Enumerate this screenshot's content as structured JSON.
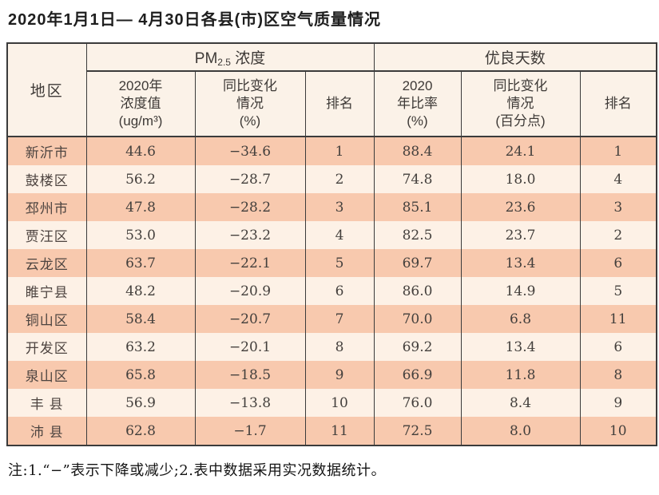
{
  "title": "2020年1月1日— 4月30日各县(市)区空气质量情况",
  "table": {
    "columns": {
      "region": "地区",
      "pm_group": {
        "prefix": "PM",
        "sub": "2.5",
        "suffix": " 浓度"
      },
      "good_group": "优良天数",
      "pm_value": "2020年\n浓度值\n(ug/m³)",
      "pm_change": "同比变化\n情况\n(%)",
      "pm_rank": "排名",
      "good_ratio": "2020\n年比率\n(%)",
      "good_change": "同比变化\n情况\n(百分点)",
      "good_rank": "排名"
    },
    "rows": [
      {
        "region": "新沂市",
        "pm_value": "44.6",
        "pm_change": "−34.6",
        "pm_rank": "1",
        "good_ratio": "88.4",
        "good_change": "24.1",
        "good_rank": "1"
      },
      {
        "region": "鼓楼区",
        "pm_value": "56.2",
        "pm_change": "−28.7",
        "pm_rank": "2",
        "good_ratio": "74.8",
        "good_change": "18.0",
        "good_rank": "4"
      },
      {
        "region": "邳州市",
        "pm_value": "47.8",
        "pm_change": "−28.2",
        "pm_rank": "3",
        "good_ratio": "85.1",
        "good_change": "23.6",
        "good_rank": "3"
      },
      {
        "region": "贾汪区",
        "pm_value": "53.0",
        "pm_change": "−23.2",
        "pm_rank": "4",
        "good_ratio": "82.5",
        "good_change": "23.7",
        "good_rank": "2"
      },
      {
        "region": "云龙区",
        "pm_value": "63.7",
        "pm_change": "−22.1",
        "pm_rank": "5",
        "good_ratio": "69.7",
        "good_change": "13.4",
        "good_rank": "6"
      },
      {
        "region": "睢宁县",
        "pm_value": "48.2",
        "pm_change": "−20.9",
        "pm_rank": "6",
        "good_ratio": "86.0",
        "good_change": "14.9",
        "good_rank": "5"
      },
      {
        "region": "铜山区",
        "pm_value": "58.4",
        "pm_change": "−20.7",
        "pm_rank": "7",
        "good_ratio": "70.0",
        "good_change": "6.8",
        "good_rank": "11"
      },
      {
        "region": "开发区",
        "pm_value": "63.2",
        "pm_change": "−20.1",
        "pm_rank": "8",
        "good_ratio": "69.2",
        "good_change": "13.4",
        "good_rank": "6"
      },
      {
        "region": "泉山区",
        "pm_value": "65.8",
        "pm_change": "−18.5",
        "pm_rank": "9",
        "good_ratio": "66.9",
        "good_change": "11.8",
        "good_rank": "8"
      },
      {
        "region": "丰 县",
        "pm_value": "56.9",
        "pm_change": "−13.8",
        "pm_rank": "10",
        "good_ratio": "76.0",
        "good_change": "8.4",
        "good_rank": "9"
      },
      {
        "region": "沛 县",
        "pm_value": "62.8",
        "pm_change": "−1.7",
        "pm_rank": "11",
        "good_ratio": "72.5",
        "good_change": "8.0",
        "good_rank": "10"
      }
    ]
  },
  "footnote": "注:1.“−”表示下降或减少;2.表中数据采用实况数据统计。",
  "colors": {
    "row_odd": "#f8c9ae",
    "row_even": "#fdf1e6",
    "header_bg": "#fbf2e8",
    "border": "#3b3b3b"
  }
}
